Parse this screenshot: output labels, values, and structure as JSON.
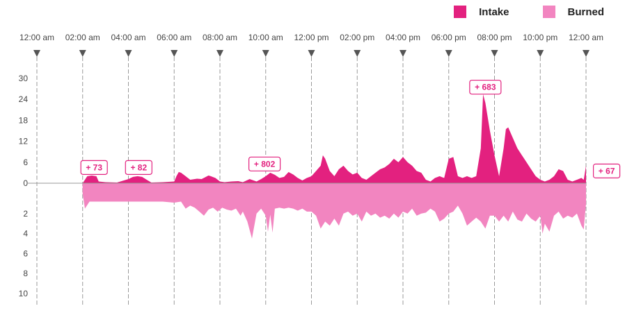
{
  "chart_data": {
    "type": "area",
    "legend": {
      "placement": "top-right",
      "items": [
        {
          "name": "Intake",
          "color": "#e3217f"
        },
        {
          "name": "Burned",
          "color": "#f285c0"
        }
      ]
    },
    "x_ticks": [
      "12:00 am",
      "02:00 am",
      "04:00 am",
      "06:00 am",
      "08:00 am",
      "10:00 am",
      "12:00 pm",
      "02:00 pm",
      "04:00 pm",
      "06:00 pm",
      "08:00 pm",
      "10:00 pm",
      "12:00 am"
    ],
    "xlim_hours": [
      0,
      24
    ],
    "y_up_ticks": [
      30,
      24,
      18,
      12,
      6,
      0
    ],
    "y_up_lim": [
      0,
      30
    ],
    "y_down_ticks": [
      2,
      4,
      6,
      8,
      10
    ],
    "y_down_lim": [
      0,
      10
    ],
    "series": [
      {
        "name": "Intake",
        "color": "#e3217f",
        "x": [
          2.0,
          2.1,
          2.2,
          2.4,
          2.6,
          2.7,
          3.0,
          3.5,
          4.0,
          4.2,
          4.4,
          4.6,
          4.8,
          5.0,
          5.5,
          6.0,
          6.1,
          6.2,
          6.3,
          6.5,
          6.7,
          7.0,
          7.2,
          7.5,
          7.6,
          7.8,
          8.0,
          8.2,
          8.5,
          8.8,
          9.0,
          9.3,
          9.6,
          9.8,
          10.0,
          10.2,
          10.4,
          10.6,
          10.8,
          11.0,
          11.2,
          11.4,
          11.6,
          11.8,
          12.0,
          12.2,
          12.4,
          12.5,
          12.6,
          12.8,
          13.0,
          13.2,
          13.4,
          13.6,
          13.8,
          14.0,
          14.2,
          14.4,
          14.6,
          14.8,
          15.0,
          15.2,
          15.4,
          15.6,
          15.8,
          16.0,
          16.2,
          16.4,
          16.6,
          16.8,
          17.0,
          17.2,
          17.4,
          17.6,
          17.8,
          18.0,
          18.2,
          18.4,
          18.6,
          18.8,
          19.0,
          19.2,
          19.4,
          19.5,
          19.6,
          19.8,
          20.0,
          20.2,
          20.4,
          20.5,
          20.6,
          20.8,
          21.0,
          21.2,
          21.4,
          21.6,
          21.8,
          22.0,
          22.2,
          22.4,
          22.6,
          22.8,
          23.0,
          23.2,
          23.4,
          23.6,
          23.8,
          23.9,
          24.0
        ],
        "values": [
          0,
          1,
          2,
          2.2,
          2,
          0.5,
          0.3,
          0.2,
          1.2,
          1.8,
          2,
          1.8,
          1,
          0.2,
          0.3,
          0.5,
          2,
          3.2,
          3,
          2,
          1,
          1.3,
          1.2,
          2.2,
          2,
          1.5,
          0.5,
          0.3,
          0.5,
          0.6,
          0.3,
          1.2,
          0.5,
          1.2,
          2,
          3,
          2.4,
          1.5,
          1.8,
          3.2,
          2.5,
          1.5,
          0.8,
          1.5,
          2,
          3.5,
          5,
          8,
          7,
          3.5,
          2,
          4,
          5,
          3.5,
          2.5,
          3,
          1.5,
          1,
          2,
          3,
          4,
          4.5,
          5.5,
          7,
          6,
          7.5,
          6,
          5,
          3.5,
          3,
          1,
          0.5,
          1.5,
          2,
          1.5,
          7,
          7.5,
          2,
          1.5,
          2,
          1.5,
          2,
          10,
          25.5,
          23,
          15,
          8,
          2,
          10,
          15.5,
          16,
          13,
          10,
          8,
          6,
          4,
          2,
          1,
          0.5,
          1,
          2,
          4,
          3.5,
          1,
          0.5,
          1,
          1.5,
          1,
          5
        ]
      },
      {
        "name": "Burned",
        "color": "#f285c0",
        "x": [
          2.0,
          2.1,
          2.3,
          2.6,
          3.0,
          3.5,
          4.0,
          4.5,
          5.0,
          5.5,
          6.0,
          6.3,
          6.5,
          6.7,
          6.9,
          7.1,
          7.3,
          7.5,
          7.7,
          7.9,
          8.1,
          8.3,
          8.5,
          8.7,
          8.9,
          9.0,
          9.2,
          9.4,
          9.6,
          9.8,
          10.0,
          10.1,
          10.2,
          10.3,
          10.4,
          10.6,
          10.8,
          11.0,
          11.2,
          11.4,
          11.6,
          11.8,
          12.0,
          12.2,
          12.4,
          12.6,
          12.8,
          13.0,
          13.2,
          13.4,
          13.6,
          13.8,
          14.0,
          14.2,
          14.4,
          14.6,
          14.8,
          15.0,
          15.2,
          15.4,
          15.6,
          15.8,
          16.0,
          16.2,
          16.4,
          16.6,
          16.8,
          17.0,
          17.2,
          17.4,
          17.6,
          17.8,
          18.0,
          18.2,
          18.4,
          18.6,
          18.8,
          19.0,
          19.2,
          19.4,
          19.6,
          19.8,
          20.0,
          20.2,
          20.4,
          20.6,
          20.8,
          21.0,
          21.2,
          21.4,
          21.6,
          21.8,
          22.0,
          22.1,
          22.2,
          22.4,
          22.6,
          22.8,
          23.0,
          23.2,
          23.4,
          23.6,
          23.8,
          23.9,
          24.0
        ],
        "values": [
          0,
          1.5,
          0.8,
          0.8,
          0.8,
          0.8,
          0.8,
          0.8,
          0.8,
          0.8,
          0.9,
          0.8,
          1.5,
          1.2,
          1.4,
          1.8,
          2.2,
          1.6,
          1.4,
          1.8,
          1.4,
          1.6,
          1.7,
          1.5,
          2.2,
          1.8,
          2.8,
          4.5,
          2,
          1.5,
          2.2,
          3.8,
          2.1,
          3.9,
          1.5,
          1.4,
          1.5,
          1.4,
          1.5,
          1.7,
          1.5,
          1.8,
          1.8,
          2.2,
          3.5,
          2.8,
          3.2,
          2.5,
          3.2,
          2,
          1.8,
          2.2,
          2,
          2.8,
          1.8,
          2.2,
          2,
          2.4,
          2.2,
          2.5,
          2,
          2.4,
          1.8,
          2,
          1.5,
          2.2,
          2,
          1.9,
          1.5,
          1.8,
          2.8,
          2.5,
          2,
          1.8,
          1.2,
          2,
          3.2,
          2.8,
          2.4,
          2.8,
          3.5,
          2.2,
          2.2,
          2.8,
          2.2,
          2.8,
          1.8,
          2.6,
          2.8,
          2,
          2.5,
          2.8,
          2.2,
          4,
          3,
          3.8,
          2.2,
          1.8,
          2.5,
          2.2,
          2.4,
          2,
          3.2,
          3.6,
          1
        ]
      }
    ],
    "annotations": [
      {
        "label": "+ 73",
        "x": 2.5,
        "y": 4.5
      },
      {
        "label": "+ 82",
        "x": 4.45,
        "y": 4.5
      },
      {
        "label": "+ 802",
        "x": 9.95,
        "y": 5.5
      },
      {
        "label": "+ 683",
        "x": 19.6,
        "y": 27.5
      },
      {
        "label": "+ 67",
        "x": 24.9,
        "y": 3.5
      }
    ],
    "grid": "vertical dashed lines at each x tick"
  }
}
